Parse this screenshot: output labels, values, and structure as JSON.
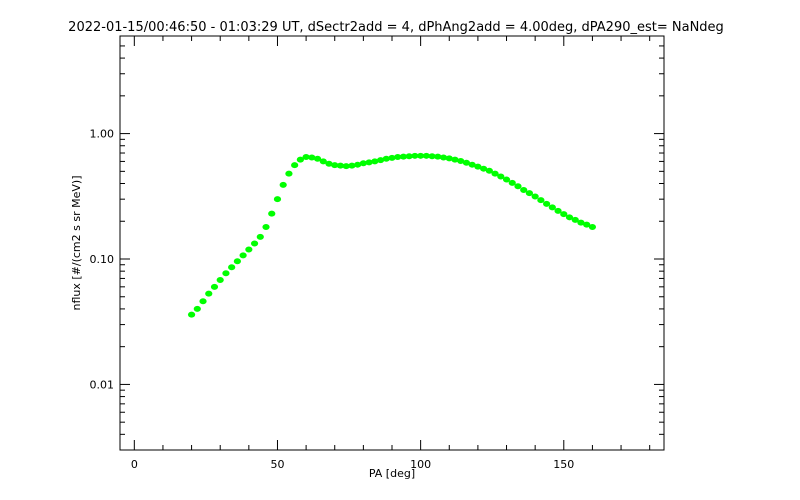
{
  "chart_data": {
    "type": "scatter",
    "title": "2022-01-15/00:46:50 - 01:03:29 UT, dSectr2add = 4, dPhAng2add = 4.00deg, dPA290_est=    NaNdeg",
    "xlabel": "PA [deg]",
    "ylabel": "nflux [#/(cm2 s sr MeV)]",
    "xlim": [
      -5,
      185
    ],
    "ylim": [
      0.003,
      6.0
    ],
    "yscale": "log",
    "grid": false,
    "series_color": "#00ff00",
    "x_ticks": [
      {
        "value": 0,
        "label": "0"
      },
      {
        "value": 50,
        "label": "50"
      },
      {
        "value": 100,
        "label": "100"
      },
      {
        "value": 150,
        "label": "150"
      }
    ],
    "x_minor_step": 10,
    "y_ticks": [
      {
        "value": 0.01,
        "label": "0.01"
      },
      {
        "value": 0.1,
        "label": "0.10"
      },
      {
        "value": 1.0,
        "label": "1.00"
      }
    ],
    "series": [
      {
        "x": [
          20,
          22,
          24,
          26,
          28,
          30,
          32,
          34,
          36,
          38,
          40,
          42,
          44,
          46,
          48,
          50,
          52,
          54,
          56,
          58,
          60,
          62,
          64,
          66,
          68,
          70,
          72,
          74,
          76,
          78,
          80,
          82,
          84,
          86,
          88,
          90,
          92,
          94,
          96,
          98,
          100,
          102,
          104,
          106,
          108,
          110,
          112,
          114,
          116,
          118,
          120,
          122,
          124,
          126,
          128,
          130,
          132,
          134,
          136,
          138,
          140,
          142,
          144,
          146,
          148,
          150,
          152,
          154,
          156,
          158,
          160
        ],
        "y": [
          0.036,
          0.04,
          0.046,
          0.053,
          0.06,
          0.068,
          0.077,
          0.086,
          0.096,
          0.107,
          0.119,
          0.133,
          0.15,
          0.18,
          0.23,
          0.3,
          0.39,
          0.48,
          0.56,
          0.62,
          0.65,
          0.645,
          0.63,
          0.6,
          0.575,
          0.56,
          0.555,
          0.55,
          0.555,
          0.565,
          0.58,
          0.59,
          0.6,
          0.615,
          0.63,
          0.64,
          0.65,
          0.655,
          0.66,
          0.665,
          0.665,
          0.665,
          0.66,
          0.655,
          0.645,
          0.635,
          0.62,
          0.605,
          0.585,
          0.565,
          0.545,
          0.525,
          0.505,
          0.48,
          0.455,
          0.43,
          0.405,
          0.38,
          0.355,
          0.335,
          0.315,
          0.295,
          0.275,
          0.258,
          0.242,
          0.228,
          0.215,
          0.205,
          0.195,
          0.188,
          0.18
        ]
      }
    ]
  }
}
